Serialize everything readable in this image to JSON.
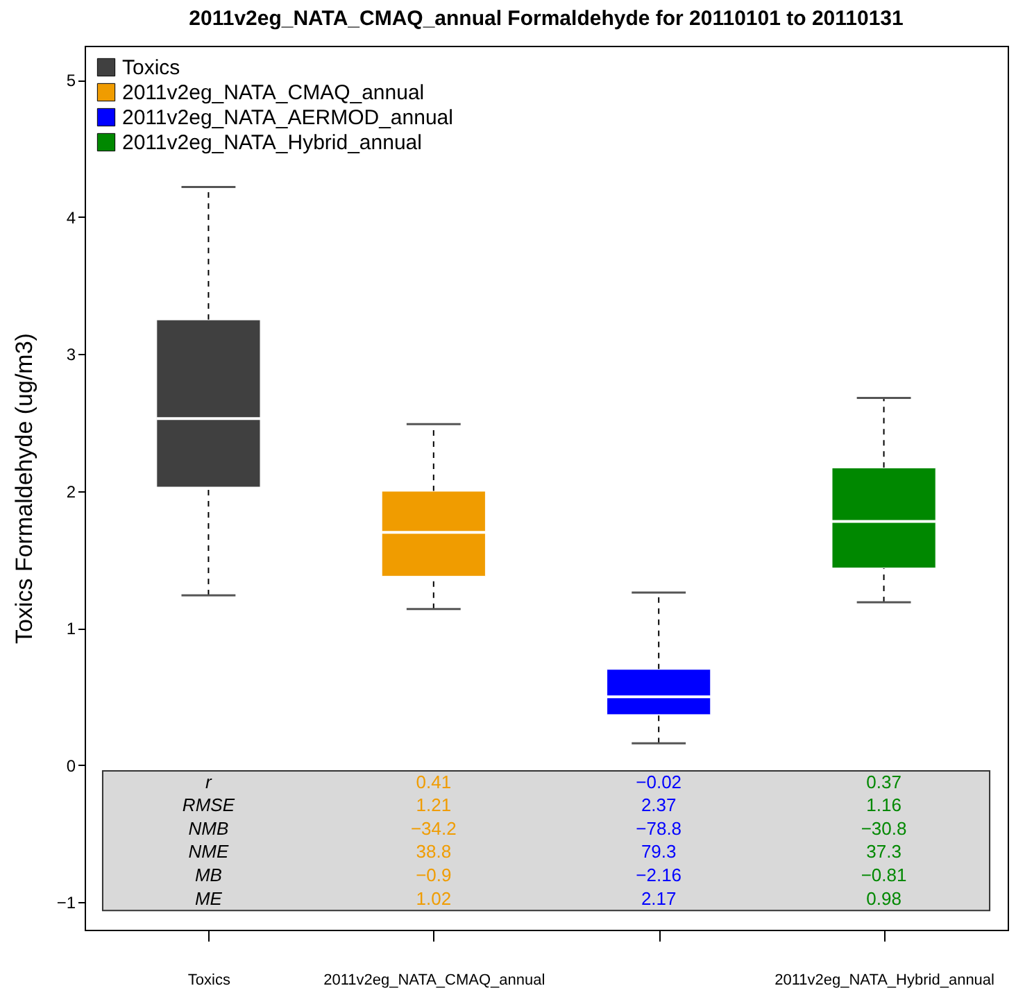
{
  "chart_data": {
    "type": "box",
    "title": "2011v2eg_NATA_CMAQ_annual Formaldehyde for 20110101 to 20110131",
    "ylabel": "Toxics Formaldehyde (ug/m3)",
    "categories": [
      "Toxics",
      "2011v2eg_NATA_CMAQ_annual",
      null,
      "2011v2eg_NATA_Hybrid_annual"
    ],
    "series": [
      {
        "name": "Toxics",
        "color": "#404040",
        "boxes": [
          {
            "low": 1.24,
            "q1": 2.03,
            "median": 2.53,
            "q3": 3.25,
            "high": 4.22
          },
          null,
          null,
          null
        ]
      },
      {
        "name": "2011v2eg_NATA_CMAQ_annual",
        "color": "#f09c00",
        "boxes": [
          null,
          {
            "low": 1.14,
            "q1": 1.38,
            "median": 1.7,
            "q3": 2.0,
            "high": 2.49
          },
          null,
          null
        ]
      },
      {
        "name": "2011v2eg_NATA_AERMOD_annual",
        "color": "#0000ff",
        "boxes": [
          null,
          null,
          {
            "low": 0.16,
            "q1": 0.37,
            "median": 0.5,
            "q3": 0.7,
            "high": 1.26
          },
          null
        ]
      },
      {
        "name": "2011v2eg_NATA_Hybrid_annual",
        "color": "#008800",
        "boxes": [
          null,
          null,
          null,
          {
            "low": 1.19,
            "q1": 1.44,
            "median": 1.78,
            "q3": 2.17,
            "high": 2.68
          }
        ]
      }
    ],
    "ylim": [
      -1.2,
      5.25
    ],
    "yticks": [
      -1,
      0,
      1,
      2,
      3,
      4,
      5
    ],
    "grid": false,
    "legend": "top left",
    "bands": [
      {
        "axis": "y",
        "from": -1.06,
        "to": -0.04,
        "color": "#d9d9d9"
      }
    ],
    "annotations": [
      "r",
      "0.41",
      "−0.02",
      "0.37",
      "RMSE",
      "1.21",
      "2.37",
      "1.16",
      "NMB",
      "−34.2",
      "−78.8",
      "−30.8",
      "NME",
      "38.8",
      "79.3",
      "37.3",
      "MB",
      "−0.9",
      "−2.16",
      "−0.81",
      "ME",
      "1.02",
      "2.17",
      "0.98"
    ]
  }
}
